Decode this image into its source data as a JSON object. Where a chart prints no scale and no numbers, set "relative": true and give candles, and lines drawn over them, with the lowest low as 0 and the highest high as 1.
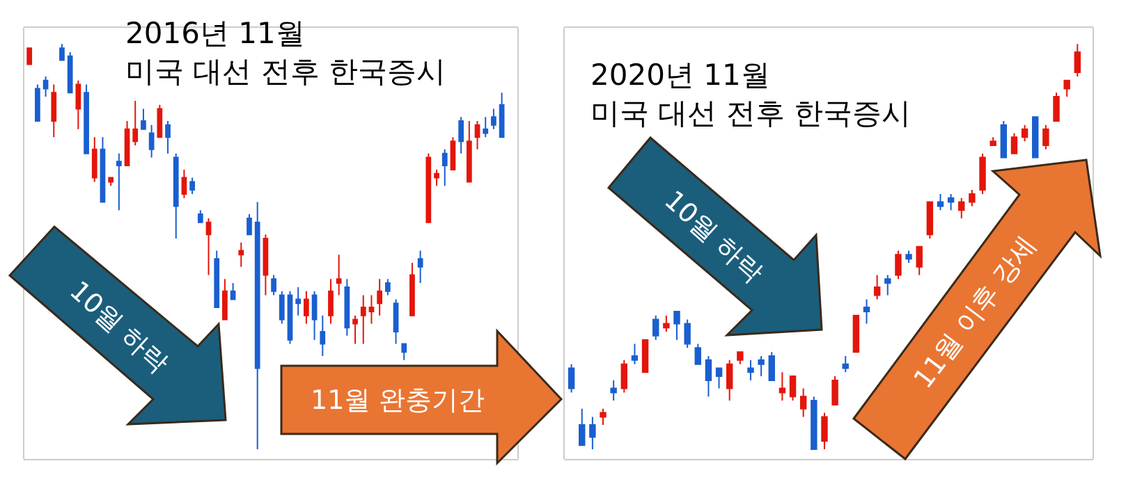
{
  "chart_data": [
    {
      "type": "candlestick",
      "title": "2016년 11월\n미국 대선 전후 한국증시",
      "relative": true,
      "colors": [
        "#e3160b",
        "#1a5fd0",
        "#1a5fd0",
        "#e3160b",
        "#1a5fd0",
        "#1a5fd0",
        "#e3160b",
        "#1a5fd0",
        "#e3160b",
        "#1a5fd0",
        "#e3160b",
        "#1a5fd0",
        "#e3160b",
        "#e3160b",
        "#1a5fd0",
        "#1a5fd0",
        "#e3160b",
        "#1a5fd0",
        "#1a5fd0",
        "#e3160b",
        "#1a5fd0",
        "#1a5fd0",
        "#e3160b",
        "#1a5fd0",
        "#e3160b",
        "#1a5fd0",
        "#e3160b",
        "#1a5fd0",
        "#1a5fd0",
        "#e3160b",
        "#1a5fd0",
        "#1a5fd0",
        "#1a5fd0",
        "#1a5fd0",
        "#e3160b",
        "#1a5fd0",
        "#1a5fd0",
        "#e3160b",
        "#e3160b",
        "#1a5fd0",
        "#e3160b",
        "#e3160b",
        "#e3160b",
        "#e3160b",
        "#1a5fd0",
        "#1a5fd0",
        "#1a5fd0",
        "#e3160b",
        "#1a5fd0",
        "#e3160b",
        "#e3160b",
        "#1a5fd0",
        "#e3160b",
        "#1a5fd0",
        "#e3160b",
        "#e3160b",
        "#1a5fd0",
        "#1a5fd0",
        "#1a5fd0"
      ],
      "categories": [
        null,
        null,
        null,
        null,
        null,
        null,
        null,
        null,
        null,
        null,
        null,
        null,
        null,
        null,
        null,
        null,
        null,
        null,
        null,
        null,
        null,
        null,
        null,
        null,
        null,
        null,
        null,
        null,
        null,
        null,
        null,
        null,
        null,
        null,
        null,
        null,
        null,
        null,
        null,
        null,
        null,
        null,
        null,
        null,
        null,
        null,
        null,
        null,
        null,
        null,
        null,
        null,
        null,
        null,
        null,
        null,
        null,
        null,
        null
      ],
      "ohlc": [
        [
          0.95,
          0.99,
          0.95,
          0.99
        ],
        [
          0.89,
          0.9,
          0.81,
          0.81
        ],
        [
          0.91,
          0.92,
          0.87,
          0.89
        ],
        [
          0.81,
          0.9,
          0.77,
          0.88
        ],
        [
          0.99,
          1.0,
          0.96,
          0.96
        ],
        [
          0.97,
          0.98,
          0.88,
          0.88
        ],
        [
          0.84,
          0.91,
          0.79,
          0.9
        ],
        [
          0.88,
          0.9,
          0.73,
          0.73
        ],
        [
          0.67,
          0.77,
          0.66,
          0.74
        ],
        [
          0.74,
          0.77,
          0.61,
          0.61
        ],
        [
          0.66,
          0.67,
          0.65,
          0.67
        ],
        [
          0.71,
          0.73,
          0.59,
          0.7
        ],
        [
          0.7,
          0.81,
          0.7,
          0.79
        ],
        [
          0.76,
          0.86,
          0.75,
          0.79
        ],
        [
          0.81,
          0.84,
          0.79,
          0.79
        ],
        [
          0.78,
          0.8,
          0.72,
          0.74
        ],
        [
          0.77,
          0.85,
          0.77,
          0.84
        ],
        [
          0.8,
          0.81,
          0.73,
          0.77
        ],
        [
          0.72,
          0.73,
          0.52,
          0.6
        ],
        [
          0.63,
          0.69,
          0.62,
          0.67
        ],
        [
          0.66,
          0.67,
          0.63,
          0.64
        ],
        [
          0.58,
          0.59,
          0.56,
          0.56
        ],
        [
          0.53,
          0.57,
          0.43,
          0.56
        ],
        [
          0.47,
          0.49,
          0.35,
          0.35
        ],
        [
          0.32,
          0.42,
          0.32,
          0.39
        ],
        [
          0.39,
          0.41,
          0.37,
          0.37
        ],
        [
          0.48,
          0.51,
          0.45,
          0.49
        ],
        [
          0.57,
          0.58,
          0.53,
          0.53
        ],
        [
          0.56,
          0.61,
          0.0,
          0.2
        ],
        [
          0.43,
          0.53,
          0.38,
          0.52
        ],
        [
          0.42,
          0.43,
          0.38,
          0.39
        ],
        [
          0.38,
          0.39,
          0.31,
          0.32
        ],
        [
          0.38,
          0.39,
          0.26,
          0.27
        ],
        [
          0.37,
          0.4,
          0.33,
          0.36
        ],
        [
          0.33,
          0.39,
          0.31,
          0.37
        ],
        [
          0.38,
          0.39,
          0.27,
          0.32
        ],
        [
          0.29,
          0.33,
          0.23,
          0.26
        ],
        [
          0.33,
          0.42,
          0.31,
          0.39
        ],
        [
          0.41,
          0.48,
          0.38,
          0.42
        ],
        [
          0.4,
          0.42,
          0.28,
          0.3
        ],
        [
          0.31,
          0.33,
          0.26,
          0.32
        ],
        [
          0.33,
          0.38,
          0.26,
          0.35
        ],
        [
          0.34,
          0.38,
          0.31,
          0.35
        ],
        [
          0.36,
          0.42,
          0.33,
          0.39
        ],
        [
          0.41,
          0.42,
          0.38,
          0.39
        ],
        [
          0.36,
          0.37,
          0.26,
          0.29
        ],
        [
          0.26,
          0.26,
          0.22,
          0.24
        ],
        [
          0.33,
          0.46,
          0.33,
          0.43
        ],
        [
          0.47,
          0.49,
          0.41,
          0.45
        ],
        [
          0.56,
          0.73,
          0.56,
          0.72
        ],
        [
          0.67,
          0.69,
          0.65,
          0.68
        ],
        [
          0.73,
          0.74,
          0.65,
          0.7
        ],
        [
          0.69,
          0.77,
          0.69,
          0.76
        ],
        [
          0.81,
          0.82,
          0.73,
          0.76
        ],
        [
          0.66,
          0.81,
          0.66,
          0.76
        ],
        [
          0.77,
          0.81,
          0.74,
          0.8
        ],
        [
          0.79,
          0.82,
          0.77,
          0.78
        ],
        [
          0.82,
          0.84,
          0.79,
          0.8
        ],
        [
          0.85,
          0.88,
          0.77,
          0.77
        ]
      ],
      "annotations": [
        "10월 하락",
        "11월 완충기간"
      ]
    },
    {
      "type": "candlestick",
      "title": "2020년 11월\n미국 대선 전후 한국증시",
      "relative": true,
      "colors": [
        "#1a5fd0",
        "#1a5fd0",
        "#1a5fd0",
        "#e3160b",
        "#1a5fd0",
        "#e3160b",
        "#1a5fd0",
        "#e3160b",
        "#1a5fd0",
        "#e3160b",
        "#1a5fd0",
        "#1a5fd0",
        "#1a5fd0",
        "#1a5fd0",
        "#1a5fd0",
        "#e3160b",
        "#e3160b",
        "#1a5fd0",
        "#1a5fd0",
        "#1a5fd0",
        "#e3160b",
        "#e3160b",
        "#e3160b",
        "#1a5fd0",
        "#e3160b",
        "#e3160b",
        "#1a5fd0",
        "#e3160b",
        "#1a5fd0",
        "#e3160b",
        "#1a5fd0",
        "#e3160b",
        "#1a5fd0",
        "#e3160b",
        "#e3160b",
        "#1a5fd0",
        "#1a5fd0",
        "#e3160b",
        "#e3160b",
        "#e3160b",
        "#e3160b",
        "#1a5fd0",
        "#e3160b",
        "#e3160b",
        "#1a5fd0",
        "#e3160b",
        "#e3160b",
        "#e3160b",
        "#e3160b"
      ],
      "categories": [
        null,
        null,
        null,
        null,
        null,
        null,
        null,
        null,
        null,
        null,
        null,
        null,
        null,
        null,
        null,
        null,
        null,
        null,
        null,
        null,
        null,
        null,
        null,
        null,
        null,
        null,
        null,
        null,
        null,
        null,
        null,
        null,
        null,
        null,
        null,
        null,
        null,
        null,
        null,
        null,
        null,
        null,
        null,
        null,
        null,
        null,
        null,
        null,
        null
      ],
      "ohlc": [
        [
          0.2,
          0.21,
          0.14,
          0.15
        ],
        [
          0.06,
          0.1,
          0.01,
          0.01
        ],
        [
          0.06,
          0.08,
          0.0,
          0.03
        ],
        [
          0.08,
          0.1,
          0.06,
          0.09
        ],
        [
          0.15,
          0.17,
          0.12,
          0.14
        ],
        [
          0.15,
          0.22,
          0.14,
          0.21
        ],
        [
          0.23,
          0.26,
          0.21,
          0.22
        ],
        [
          0.19,
          0.27,
          0.19,
          0.27
        ],
        [
          0.32,
          0.33,
          0.27,
          0.28
        ],
        [
          0.3,
          0.33,
          0.29,
          0.31
        ],
        [
          0.34,
          0.34,
          0.27,
          0.31
        ],
        [
          0.31,
          0.32,
          0.25,
          0.26
        ],
        [
          0.25,
          0.26,
          0.21,
          0.21
        ],
        [
          0.22,
          0.23,
          0.13,
          0.17
        ],
        [
          0.2,
          0.2,
          0.15,
          0.18
        ],
        [
          0.15,
          0.22,
          0.12,
          0.21
        ],
        [
          0.22,
          0.24,
          0.21,
          0.24
        ],
        [
          0.2,
          0.22,
          0.17,
          0.19
        ],
        [
          0.22,
          0.23,
          0.18,
          0.21
        ],
        [
          0.23,
          0.24,
          0.17,
          0.17
        ],
        [
          0.14,
          0.19,
          0.12,
          0.15
        ],
        [
          0.13,
          0.18,
          0.12,
          0.18
        ],
        [
          0.1,
          0.15,
          0.08,
          0.13
        ],
        [
          0.12,
          0.13,
          0.0,
          0.0
        ],
        [
          0.02,
          0.09,
          0.0,
          0.08
        ],
        [
          0.11,
          0.18,
          0.11,
          0.17
        ],
        [
          0.21,
          0.23,
          0.19,
          0.2
        ],
        [
          0.24,
          0.33,
          0.24,
          0.33
        ],
        [
          0.35,
          0.37,
          0.31,
          0.34
        ],
        [
          0.38,
          0.43,
          0.37,
          0.4
        ],
        [
          0.42,
          0.43,
          0.38,
          0.41
        ],
        [
          0.43,
          0.49,
          0.42,
          0.48
        ],
        [
          0.48,
          0.49,
          0.46,
          0.47
        ],
        [
          0.45,
          0.5,
          0.43,
          0.5
        ],
        [
          0.53,
          0.61,
          0.52,
          0.61
        ],
        [
          0.61,
          0.63,
          0.59,
          0.6
        ],
        [
          0.62,
          0.63,
          0.59,
          0.61
        ],
        [
          0.59,
          0.62,
          0.57,
          0.61
        ],
        [
          0.61,
          0.64,
          0.6,
          0.63
        ],
        [
          0.64,
          0.73,
          0.63,
          0.72
        ],
        [
          0.75,
          0.77,
          0.75,
          0.76
        ],
        [
          0.8,
          0.81,
          0.72,
          0.72
        ],
        [
          0.73,
          0.78,
          0.73,
          0.77
        ],
        [
          0.77,
          0.8,
          0.76,
          0.79
        ],
        [
          0.82,
          0.82,
          0.72,
          0.72
        ],
        [
          0.75,
          0.8,
          0.74,
          0.79
        ],
        [
          0.81,
          0.88,
          0.81,
          0.87
        ],
        [
          0.89,
          0.91,
          0.87,
          0.91
        ],
        [
          0.93,
          1.0,
          0.92,
          0.98
        ]
      ],
      "annotations": [
        "10월 하락",
        "11월 이후 강세"
      ]
    }
  ]
}
